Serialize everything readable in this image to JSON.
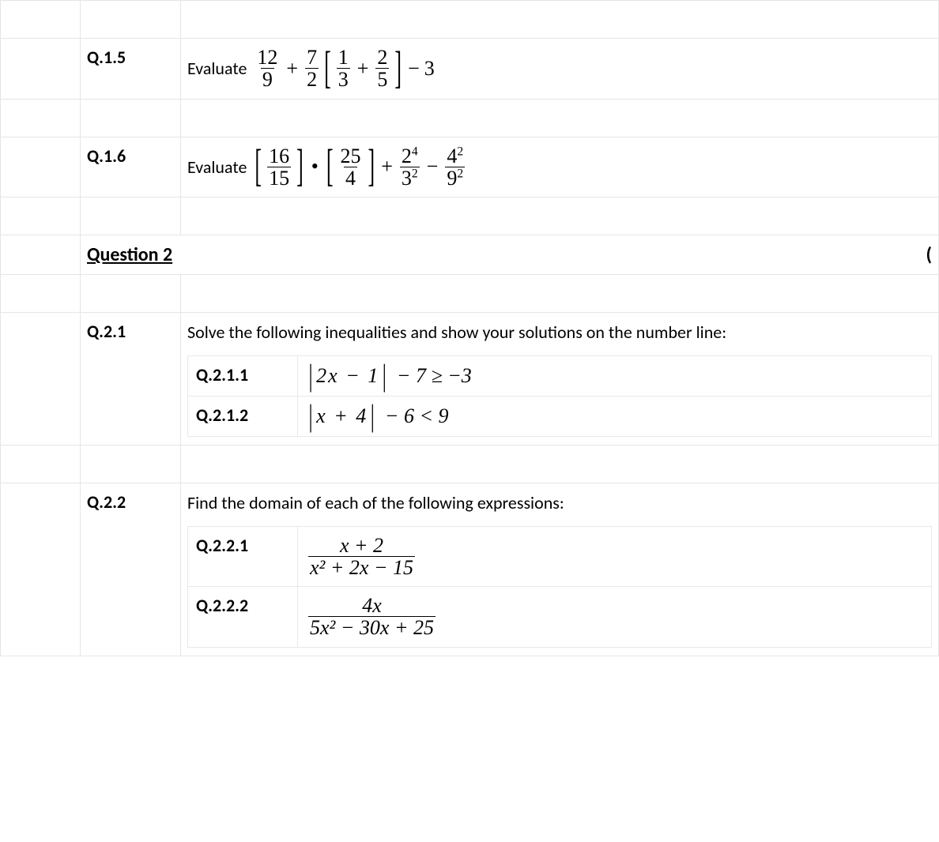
{
  "colors": {
    "border": "#e5e5e5",
    "text": "#000000",
    "background": "#ffffff"
  },
  "rows": [
    {
      "qnum": "Q.1.5",
      "lead": "Evaluate",
      "expr": {
        "type": "q15",
        "f1": {
          "num": "12",
          "den": "9"
        },
        "op1": "+",
        "f2": {
          "num": "7",
          "den": "2"
        },
        "bracket": {
          "f3": {
            "num": "1",
            "den": "3"
          },
          "op": "+",
          "f4": {
            "num": "2",
            "den": "5"
          }
        },
        "tail_op": "−",
        "tail": "3"
      }
    },
    {
      "qnum": "Q.1.6",
      "lead": "Evaluate",
      "expr": {
        "type": "q16",
        "b1": {
          "num": "16",
          "den": "15"
        },
        "b2": {
          "num": "25",
          "den": "4"
        },
        "op1": "+",
        "f1": {
          "num_base": "2",
          "num_exp": "4",
          "den_base": "3",
          "den_exp": "2"
        },
        "op2": "−",
        "f2": {
          "num_base": "4",
          "num_exp": "2",
          "den_base": "9",
          "den_exp": "2"
        }
      }
    }
  ],
  "question2": {
    "header": "Question 2",
    "right_paren": "("
  },
  "q21": {
    "qnum": "Q.2.1",
    "intro": "Solve the following inequalities and show your solutions on the number line:",
    "subs": [
      {
        "num": "Q.2.1.1",
        "abs_inner_pre": "2",
        "abs_inner_var": "x",
        "abs_inner_op": "−",
        "abs_inner_post": "1",
        "after_abs": "− 7 ≥ −3"
      },
      {
        "num": "Q.2.1.2",
        "abs_inner_var": "x",
        "abs_inner_op": "+",
        "abs_inner_post": "4",
        "after_abs": "− 6 < 9"
      }
    ]
  },
  "q22": {
    "qnum": "Q.2.2",
    "intro": "Find the domain of each of the following expressions:",
    "subs": [
      {
        "num": "Q.2.2.1",
        "frac_num": "x + 2",
        "frac_den": "x² + 2x − 15"
      },
      {
        "num": "Q.2.2.2",
        "frac_num": "4x",
        "frac_den": "5x² − 30x + 25"
      }
    ]
  }
}
